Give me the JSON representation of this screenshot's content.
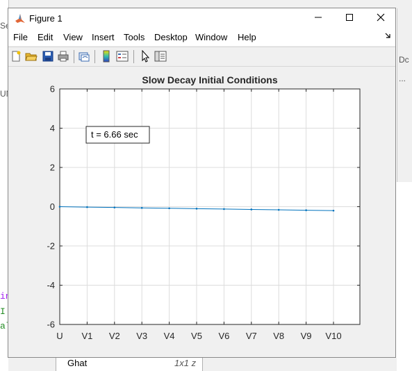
{
  "window": {
    "title": "Figure 1",
    "controls": {
      "minimize": "—",
      "maximize": "☐",
      "close": "✕"
    }
  },
  "menu": {
    "items": [
      "File",
      "Edit",
      "View",
      "Insert",
      "Tools",
      "Desktop",
      "Window",
      "Help"
    ],
    "overflow_icon": "dock-arrow-icon"
  },
  "toolbar": {
    "icons": [
      "new-figure-icon",
      "open-file-icon",
      "save-icon",
      "print-icon",
      "link-figure-icon",
      "colorbar-icon",
      "legend-icon",
      "select-arrow-icon",
      "property-editor-icon"
    ]
  },
  "background": {
    "left_code": [
      "in",
      "I",
      "al"
    ],
    "left_code_colors": [
      "#a020f0",
      "#228b22",
      "#228b22"
    ],
    "left_top_fragments": [
      "Se",
      "UN"
    ],
    "right_fragments": [
      "Dc",
      "..."
    ],
    "bottom_panel_label": "Ghat",
    "bottom_panel_type": "1x1 z"
  },
  "chart_data": {
    "type": "line",
    "title": "Slow Decay Initial Conditions",
    "categories": [
      "U",
      "V1",
      "V2",
      "V3",
      "V4",
      "V5",
      "V6",
      "V7",
      "V8",
      "V9",
      "V10"
    ],
    "series": [
      {
        "values": [
          0,
          -0.02,
          -0.04,
          -0.06,
          -0.08,
          -0.1,
          -0.12,
          -0.14,
          -0.16,
          -0.18,
          -0.2
        ],
        "color": "#0072bd"
      }
    ],
    "ylim": [
      -6,
      6
    ],
    "yticks": [
      -6,
      -4,
      -2,
      0,
      2,
      4,
      6
    ],
    "grid": true,
    "annotation": "t = 6.66 sec"
  }
}
